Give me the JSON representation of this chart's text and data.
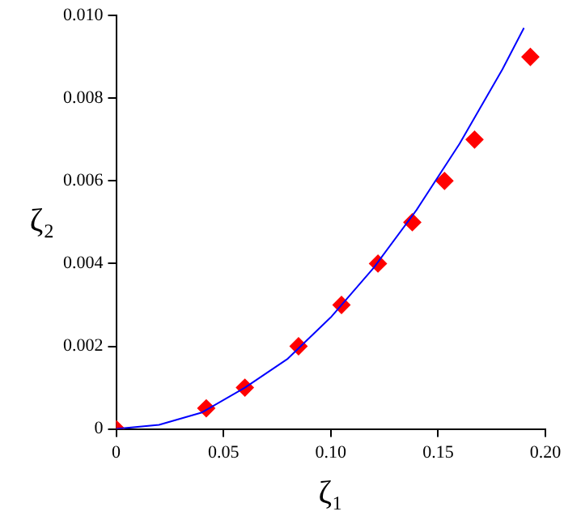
{
  "chart_data": {
    "type": "scatter",
    "xlabel": "ζ₁",
    "ylabel": "ζ₂",
    "xlim": [
      0,
      0.2
    ],
    "ylim": [
      0,
      0.01
    ],
    "xticks": [
      0,
      0.05,
      {
        "value": 0.1,
        "label": "0.10"
      },
      0.15,
      {
        "value": 0.2,
        "label": "0.20"
      }
    ],
    "yticks": [
      0,
      0.002,
      0.004,
      0.006,
      0.008,
      {
        "value": 0.01,
        "label": "0.010"
      }
    ],
    "grid": false,
    "legend": false,
    "series": [
      {
        "type": "line",
        "marker": "none",
        "color": "#0000ff",
        "x": [
          0,
          0.02,
          0.04,
          0.06,
          0.08,
          0.1,
          0.12,
          0.14,
          0.16,
          0.18,
          0.19
        ],
        "values": [
          0,
          0.0001,
          0.0004,
          0.001,
          0.0017,
          0.0027,
          0.0039,
          0.0053,
          0.0069,
          0.0087,
          0.0097
        ]
      },
      {
        "marker": "diamond",
        "color": "#ff0000",
        "x": [
          0,
          0.042,
          0.06,
          0.085,
          0.105,
          0.122,
          0.138,
          0.153,
          0.167,
          0.193
        ],
        "values": [
          0,
          0.0005,
          0.001,
          0.002,
          0.003,
          0.004,
          0.005,
          0.006,
          0.007,
          0.009
        ]
      }
    ]
  }
}
